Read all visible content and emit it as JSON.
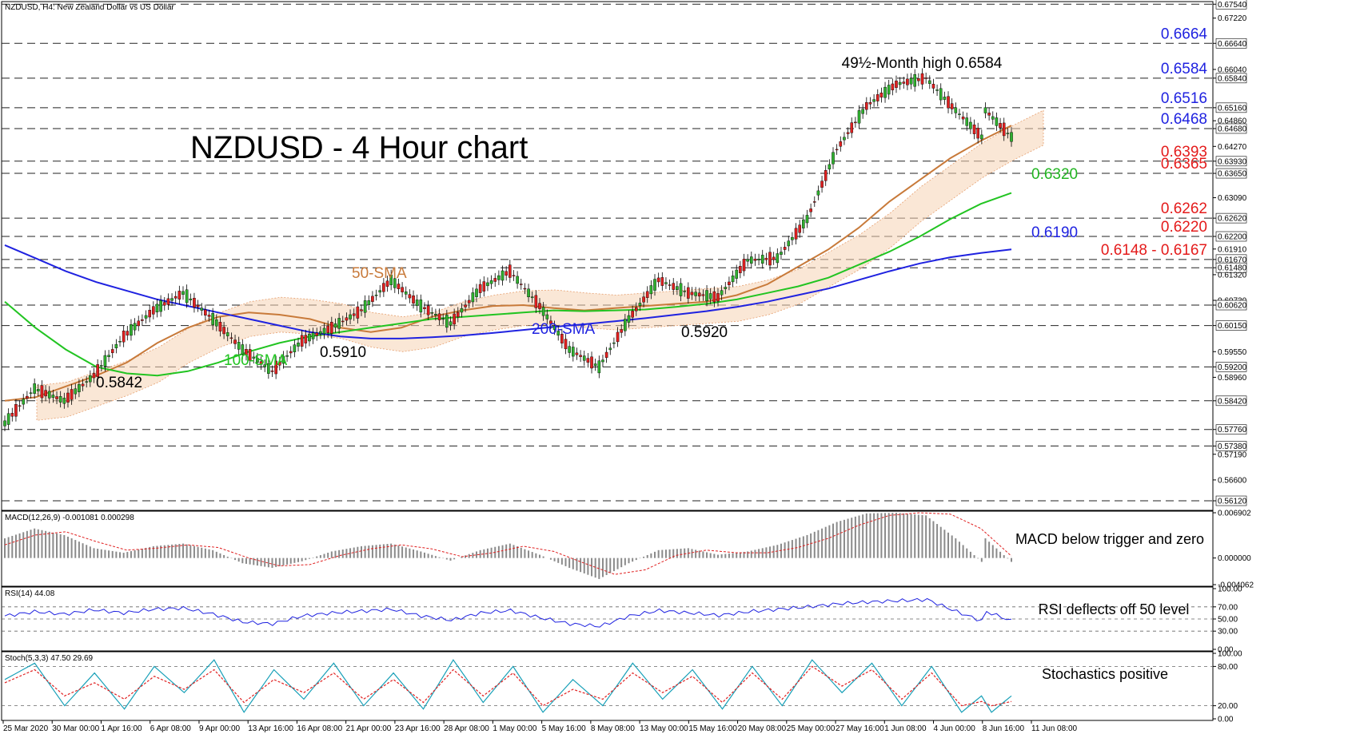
{
  "header_label": "NZDUSD, H4: New Zealand Dollar vs US Dollar",
  "chart_data": [
    {
      "type": "line",
      "panel": "price",
      "title": "NZDUSD - 4 Hour chart",
      "ylim": [
        0.559,
        0.676
      ],
      "x_tick_labels": [
        "25 Mar 2020",
        "30 Mar 00:00",
        "1 Apr 16:00",
        "6 Apr 08:00",
        "9 Apr 00:00",
        "13 Apr 16:00",
        "16 Apr 08:00",
        "21 Apr 00:00",
        "23 Apr 16:00",
        "28 Apr 08:00",
        "1 May 00:00",
        "5 May 16:00",
        "8 May 08:00",
        "13 May 00:00",
        "15 May 16:00",
        "20 May 08:00",
        "25 May 00:00",
        "27 May 16:00",
        "1 Jun 08:00",
        "4 Jun 00:00",
        "8 Jun 16:00",
        "11 Jun 08:00"
      ],
      "y_tick_labels": [
        "0.67540",
        "0.67220",
        "0.66640",
        "0.66040",
        "0.65840",
        "0.65160",
        "0.64860",
        "0.64680",
        "0.64270",
        "0.63930",
        "0.63650",
        "0.63090",
        "0.62620",
        "0.62200",
        "0.61910",
        "0.61670",
        "0.61480",
        "0.61320",
        "0.60730",
        "0.60620",
        "0.60150",
        "0.59550",
        "0.59200",
        "0.58960",
        "0.58420",
        "0.57760",
        "0.57380",
        "0.57190",
        "0.56600",
        "0.56120"
      ],
      "levels": [
        {
          "label": "0.6754",
          "value": 0.6754,
          "color": "#1f22e0"
        },
        {
          "label": "0.6664",
          "value": 0.6664,
          "color": "#1f22e0"
        },
        {
          "label": "0.6584",
          "value": 0.6584,
          "color": "#1f22e0"
        },
        {
          "label": "0.6516",
          "value": 0.6516,
          "color": "#1f22e0"
        },
        {
          "label": "0.6468",
          "value": 0.6468,
          "color": "#1f22e0"
        },
        {
          "label": "0.6393",
          "value": 0.6393,
          "color": "#e41b1b"
        },
        {
          "label": "0.6365",
          "value": 0.6365,
          "color": "#e41b1b"
        },
        {
          "label": "0.6262",
          "value": 0.6262,
          "color": "#e41b1b"
        },
        {
          "label": "0.6220",
          "value": 0.622,
          "color": "#e41b1b"
        },
        {
          "label": "0.6148 - 0.6167",
          "value": 0.6167,
          "color": "#e41b1b"
        },
        {
          "value": 0.6148
        },
        {
          "value": 0.6062
        },
        {
          "value": 0.6015
        },
        {
          "value": 0.592
        },
        {
          "value": 0.5842
        },
        {
          "value": 0.5776
        },
        {
          "value": 0.5738
        },
        {
          "value": 0.5612
        }
      ],
      "annotations": [
        {
          "text": "49½-Month high 0.6584",
          "color": "#000000"
        },
        {
          "text": "0.6320",
          "color": "#22b522"
        },
        {
          "text": "0.6190",
          "color": "#1f22e0"
        },
        {
          "text": "50-SMA",
          "color": "#c87a3a"
        },
        {
          "text": "100-SMA",
          "color": "#22c422"
        },
        {
          "text": "200-SMA",
          "color": "#1f22e0"
        },
        {
          "text": "0.5910",
          "color": "#000000"
        },
        {
          "text": "0.5842",
          "color": "#000000"
        },
        {
          "text": "0.5920",
          "color": "#000000"
        }
      ],
      "series": [
        {
          "name": "50-SMA",
          "color": "#c87a3a",
          "values": [
            0.5842,
            0.585,
            0.5875,
            0.59,
            0.593,
            0.5975,
            0.601,
            0.6035,
            0.6045,
            0.604,
            0.603,
            0.601,
            0.6,
            0.601,
            0.6035,
            0.605,
            0.606,
            0.6062,
            0.6055,
            0.605,
            0.6055,
            0.606,
            0.6065,
            0.607,
            0.6085,
            0.611,
            0.615,
            0.619,
            0.624,
            0.63,
            0.635,
            0.64,
            0.644,
            0.6475
          ]
        },
        {
          "name": "100-SMA",
          "color": "#22c422",
          "values": [
            0.607,
            0.601,
            0.596,
            0.592,
            0.5905,
            0.59,
            0.591,
            0.593,
            0.5955,
            0.5975,
            0.599,
            0.6,
            0.601,
            0.602,
            0.603,
            0.6035,
            0.604,
            0.6045,
            0.605,
            0.6048,
            0.605,
            0.6052,
            0.6058,
            0.6065,
            0.6075,
            0.609,
            0.6105,
            0.6125,
            0.6155,
            0.6185,
            0.622,
            0.626,
            0.6295,
            0.632
          ]
        },
        {
          "name": "200-SMA",
          "color": "#1f22e0",
          "values": [
            0.62,
            0.617,
            0.614,
            0.6115,
            0.6095,
            0.6075,
            0.606,
            0.6045,
            0.603,
            0.6015,
            0.6,
            0.599,
            0.5985,
            0.5985,
            0.5988,
            0.5992,
            0.5998,
            0.6005,
            0.6012,
            0.6018,
            0.6025,
            0.6032,
            0.604,
            0.6048,
            0.6058,
            0.607,
            0.6085,
            0.61,
            0.612,
            0.614,
            0.6158,
            0.6172,
            0.6182,
            0.619
          ]
        },
        {
          "name": "Price",
          "color": "#000000",
          "values": [
            0.579,
            0.587,
            0.5842,
            0.59,
            0.599,
            0.605,
            0.609,
            0.603,
            0.596,
            0.591,
            0.598,
            0.601,
            0.605,
            0.612,
            0.606,
            0.602,
            0.61,
            0.614,
            0.606,
            0.596,
            0.592,
            0.603,
            0.612,
            0.609,
            0.608,
            0.6165,
            0.617,
            0.626,
            0.642,
            0.652,
            0.657,
            0.6584,
            0.651,
            0.644
          ]
        }
      ]
    },
    {
      "type": "bar",
      "panel": "macd",
      "title": "MACD(12,26,9) -0.001081 0.000298",
      "annotation": "MACD below trigger and zero",
      "y_tick_labels": [
        "0.006902",
        "0.000000",
        "-0.004062"
      ],
      "ylim": [
        -0.004062,
        0.006902
      ],
      "series": [
        {
          "name": "MACD",
          "values": [
            0.003,
            0.0045,
            0.0035,
            0.0015,
            0.0008,
            0.0018,
            0.0022,
            0.0012,
            -0.0008,
            -0.0015,
            -0.0005,
            0.001,
            0.0018,
            0.0022,
            0.001,
            -0.0004,
            0.0012,
            0.0022,
            0.0005,
            -0.0015,
            -0.0032,
            -0.0008,
            0.0012,
            0.0015,
            0.0005,
            0.001,
            0.002,
            0.0035,
            0.0055,
            0.0068,
            0.0069,
            0.0065,
            0.003,
            -0.0011
          ]
        },
        {
          "name": "Signal",
          "values": [
            0.002,
            0.0035,
            0.004,
            0.0025,
            0.0012,
            0.0015,
            0.002,
            0.0016,
            0.0,
            -0.0012,
            -0.001,
            0.0004,
            0.0014,
            0.002,
            0.0014,
            0.0002,
            0.0008,
            0.0018,
            0.001,
            -0.0008,
            -0.0025,
            -0.0018,
            0.0004,
            0.0012,
            0.0008,
            0.0008,
            0.0016,
            0.003,
            0.005,
            0.0065,
            0.0069,
            0.0067,
            0.0045,
            0.0003
          ]
        }
      ]
    },
    {
      "type": "line",
      "panel": "rsi",
      "title": "RSI(14) 44.08",
      "annotation": "RSI deflects off 50 level",
      "y_tick_labels": [
        "100.00",
        "70.00",
        "50.00",
        "30.00",
        "0.00"
      ],
      "ylim": [
        0,
        100
      ],
      "series": [
        {
          "name": "RSI",
          "values": [
            55,
            62,
            58,
            65,
            60,
            66,
            68,
            58,
            45,
            42,
            55,
            60,
            63,
            66,
            55,
            48,
            60,
            64,
            52,
            42,
            38,
            55,
            64,
            60,
            56,
            62,
            66,
            70,
            75,
            78,
            80,
            82,
            62,
            44
          ]
        }
      ]
    },
    {
      "type": "line",
      "panel": "stoch",
      "title": "Stoch(5,3,3) 47.50 29.69",
      "annotation": "Stochastics positive",
      "y_tick_labels": [
        "100.00",
        "80.00",
        "20.00",
        "0.00"
      ],
      "ylim": [
        0,
        100
      ],
      "series": [
        {
          "name": "%K",
          "values": [
            60,
            85,
            20,
            70,
            15,
            80,
            40,
            90,
            10,
            75,
            30,
            85,
            20,
            70,
            15,
            90,
            25,
            80,
            10,
            60,
            20,
            85,
            30,
            75,
            15,
            80,
            20,
            90,
            40,
            85,
            20,
            80,
            10,
            47.5
          ]
        },
        {
          "name": "%D",
          "values": [
            55,
            75,
            35,
            55,
            30,
            65,
            45,
            75,
            25,
            60,
            40,
            70,
            30,
            60,
            25,
            75,
            35,
            70,
            20,
            45,
            30,
            70,
            40,
            65,
            25,
            70,
            30,
            80,
            50,
            75,
            30,
            70,
            20,
            29.69
          ]
        }
      ]
    }
  ]
}
